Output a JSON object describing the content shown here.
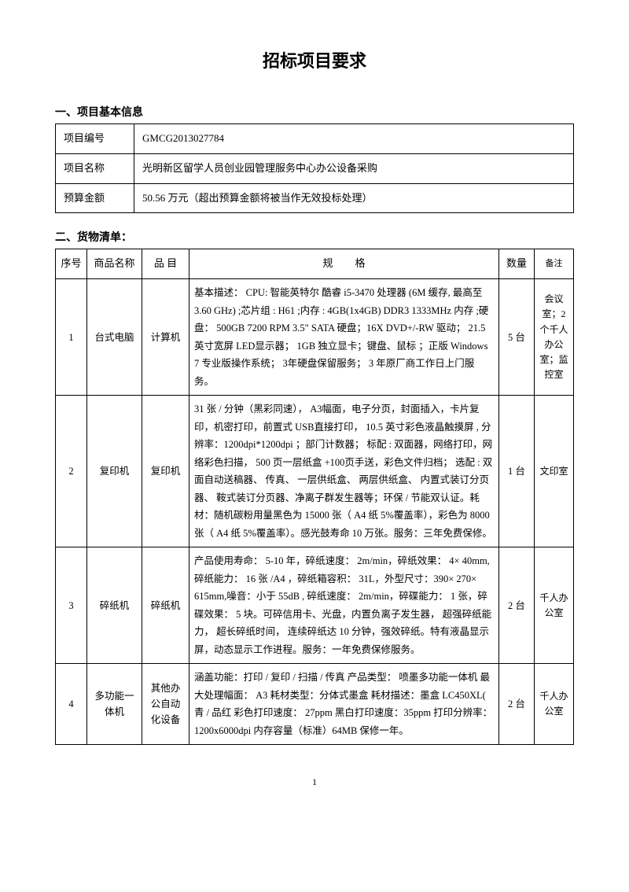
{
  "title": "招标项目要求",
  "section1": {
    "heading": "一、项目基本信息",
    "rows": {
      "project_no_label": "项目编号",
      "project_no_value": "GMCG2013027784",
      "project_name_label": "项目名称",
      "project_name_value": "光明新区留学人员创业园管理服务中心办公设备采购",
      "budget_label": "预算金额",
      "budget_value": "50.56 万元（超出预算金额将被当作无效投标处理）"
    }
  },
  "section2": {
    "heading": "二、货物清单：",
    "headers": {
      "seq": "序号",
      "name": "商品名称",
      "cat": "品  目",
      "spec_a": "规",
      "spec_b": "格",
      "qty": "数量",
      "note": "备注"
    },
    "rows": [
      {
        "seq": "1",
        "name": "台式电脑",
        "cat": "计算机",
        "spec": "基本描述：  CPU: 智能英特尔   酷睿 i5-3470   处理器 (6M 缓存, 最高至  3.60  GHz) ;芯片组 : H61 ;内存 : 4GB(1x4GB) DDR3 1333MHz 内存 ;硬盘：  500GB 7200 RPM 3.5\" SATA  硬盘；16X DVD+/-RW 驱动；  21.5  英寸宽屏  LED显示器；  1GB 独立显卡；键盘、鼠标  ；正版 Windows 7 专业版操作系统；   3年硬盘保留服务；   3 年原厂商工作日上门服务。",
        "qty": "5 台",
        "note": "会议室；2 个千人办公室；监控室"
      },
      {
        "seq": "2",
        "name": "复印机",
        "cat": "复印机",
        "spec": "31 张 / 分钟（黑彩同速），   A3幅面，电子分页，封面插入，卡片复印，机密打印，前置式    USB直接打印，  10.5 英寸彩色液晶触摸屏  , 分辨率：1200dpi*1200dpi  ；部门计数器；  标配 : 双面器，网络打印，网络彩色扫描，   500 页一层纸盒 +100页手送，彩色文件归档；   选配 : 双面自动送稿器、  传真、 一层供纸盒、 两层供纸盒、 内置式装订分页器、  鞍式装订分页器、净离子群发生器等；环保   / 节能双认证。耗材：随机碳粉用量黑色为   15000 张（ A4 纸 5%覆盖率），彩色为  8000 张（ A4 纸 5%覆盖率）。感光鼓寿命   10 万张。服务：三年免费保修。",
        "qty": "1 台",
        "note": "文印室"
      },
      {
        "seq": "3",
        "name": "碎纸机",
        "cat": "碎纸机",
        "spec": "产品使用寿命：   5-10  年，碎纸速度：   2m/min，碎纸效果：  4× 40mm, 碎纸能力：  16 张 /A4 ，碎纸箱容积：   31L，外型尺寸：390× 270× 615mm,噪音：小于 55dB , 碎纸速度： 2m/min，碎碟能力：  1 张，碎碟效果：   5 块。可碎信用卡、光盘，内置负离子发生器，  超强碎纸能力，  超长碎纸时间，  连续碎纸达 10 分钟，强效碎纸。特有液晶显示屏，动态显示工作进程。服务：一年免费保修服务。",
        "qty": "2 台",
        "note": "千人办公室"
      },
      {
        "seq": "4",
        "name": "多功能一体机",
        "cat": "其他办公自动化设备",
        "spec": "涵盖功能：打印 / 复印 / 扫描 / 传真  产品类型：  喷墨多功能一体机   最大处理幅面：  A3 耗材类型：分体式墨盒   耗材描述：墨盒 LC450XL( 青 / 品红  彩色打印速度：   27ppm 黑白打印速度：35ppm 打印分辨率：  1200x6000dpi   内存容量（标准）64MB 保修一年。",
        "qty": "2 台",
        "note": "千人办公室"
      }
    ]
  },
  "page_number": "1"
}
